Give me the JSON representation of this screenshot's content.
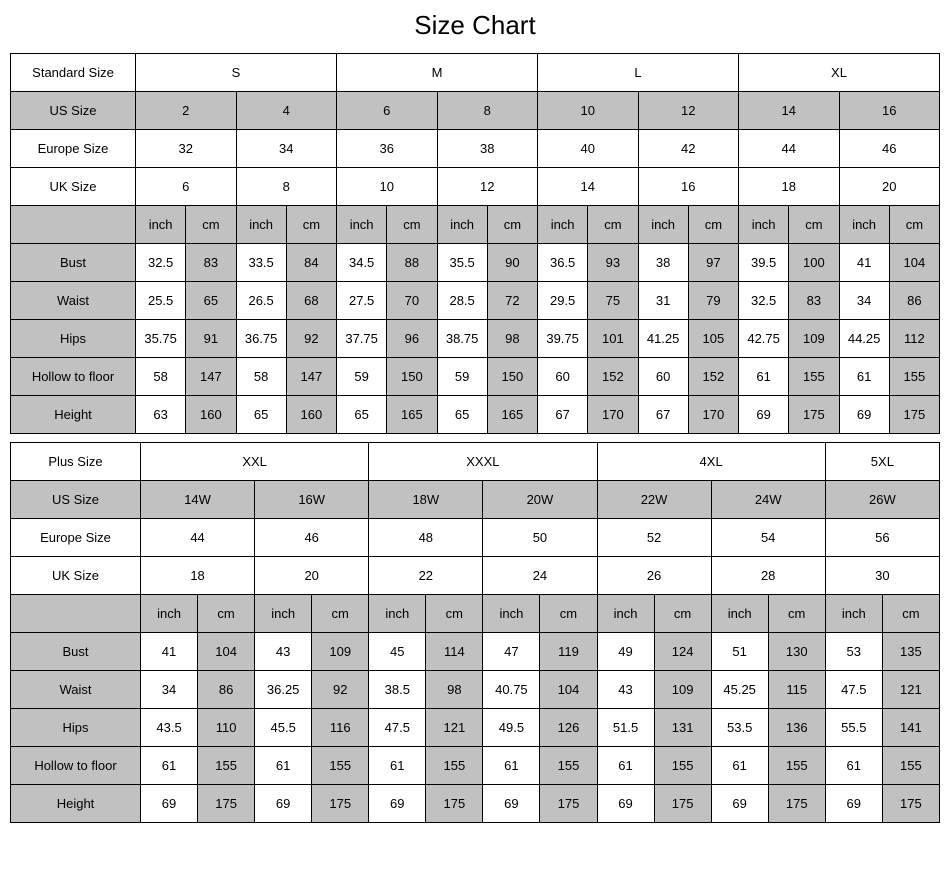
{
  "title": "Size Chart",
  "table1": {
    "label_col": "Standard Size",
    "sizes": [
      "S",
      "M",
      "L",
      "XL"
    ],
    "us_label": "US Size",
    "us": [
      "2",
      "4",
      "6",
      "8",
      "10",
      "12",
      "14",
      "16"
    ],
    "eu_label": "Europe Size",
    "eu": [
      "32",
      "34",
      "36",
      "38",
      "40",
      "42",
      "44",
      "46"
    ],
    "uk_label": "UK Size",
    "uk": [
      "6",
      "8",
      "10",
      "12",
      "14",
      "16",
      "18",
      "20"
    ],
    "unit_inch": "inch",
    "unit_cm": "cm",
    "measurements": [
      {
        "label": "Bust",
        "vals": [
          "32.5",
          "83",
          "33.5",
          "84",
          "34.5",
          "88",
          "35.5",
          "90",
          "36.5",
          "93",
          "38",
          "97",
          "39.5",
          "100",
          "41",
          "104"
        ]
      },
      {
        "label": "Waist",
        "vals": [
          "25.5",
          "65",
          "26.5",
          "68",
          "27.5",
          "70",
          "28.5",
          "72",
          "29.5",
          "75",
          "31",
          "79",
          "32.5",
          "83",
          "34",
          "86"
        ]
      },
      {
        "label": "Hips",
        "vals": [
          "35.75",
          "91",
          "36.75",
          "92",
          "37.75",
          "96",
          "38.75",
          "98",
          "39.75",
          "101",
          "41.25",
          "105",
          "42.75",
          "109",
          "44.25",
          "112"
        ]
      },
      {
        "label": "Hollow to floor",
        "vals": [
          "58",
          "147",
          "58",
          "147",
          "59",
          "150",
          "59",
          "150",
          "60",
          "152",
          "60",
          "152",
          "61",
          "155",
          "61",
          "155"
        ]
      },
      {
        "label": "Height",
        "vals": [
          "63",
          "160",
          "65",
          "160",
          "65",
          "165",
          "65",
          "165",
          "67",
          "170",
          "67",
          "170",
          "69",
          "175",
          "69",
          "175"
        ]
      }
    ]
  },
  "table2": {
    "label_col": "Plus Size",
    "sizes": [
      "XXL",
      "XXXL",
      "4XL",
      "5XL"
    ],
    "size_spans": [
      4,
      4,
      4,
      2
    ],
    "us_label": "US Size",
    "us": [
      "14W",
      "16W",
      "18W",
      "20W",
      "22W",
      "24W",
      "26W"
    ],
    "eu_label": "Europe Size",
    "eu": [
      "44",
      "46",
      "48",
      "50",
      "52",
      "54",
      "56"
    ],
    "uk_label": "UK Size",
    "uk": [
      "18",
      "20",
      "22",
      "24",
      "26",
      "28",
      "30"
    ],
    "unit_inch": "inch",
    "unit_cm": "cm",
    "measurements": [
      {
        "label": "Bust",
        "vals": [
          "41",
          "104",
          "43",
          "109",
          "45",
          "114",
          "47",
          "119",
          "49",
          "124",
          "51",
          "130",
          "53",
          "135"
        ]
      },
      {
        "label": "Waist",
        "vals": [
          "34",
          "86",
          "36.25",
          "92",
          "38.5",
          "98",
          "40.75",
          "104",
          "43",
          "109",
          "45.25",
          "115",
          "47.5",
          "121"
        ]
      },
      {
        "label": "Hips",
        "vals": [
          "43.5",
          "110",
          "45.5",
          "116",
          "47.5",
          "121",
          "49.5",
          "126",
          "51.5",
          "131",
          "53.5",
          "136",
          "55.5",
          "141"
        ]
      },
      {
        "label": "Hollow to floor",
        "vals": [
          "61",
          "155",
          "61",
          "155",
          "61",
          "155",
          "61",
          "155",
          "61",
          "155",
          "61",
          "155",
          "61",
          "155"
        ]
      },
      {
        "label": "Height",
        "vals": [
          "69",
          "175",
          "69",
          "175",
          "69",
          "175",
          "69",
          "175",
          "69",
          "175",
          "69",
          "175",
          "69",
          "175"
        ]
      }
    ]
  }
}
